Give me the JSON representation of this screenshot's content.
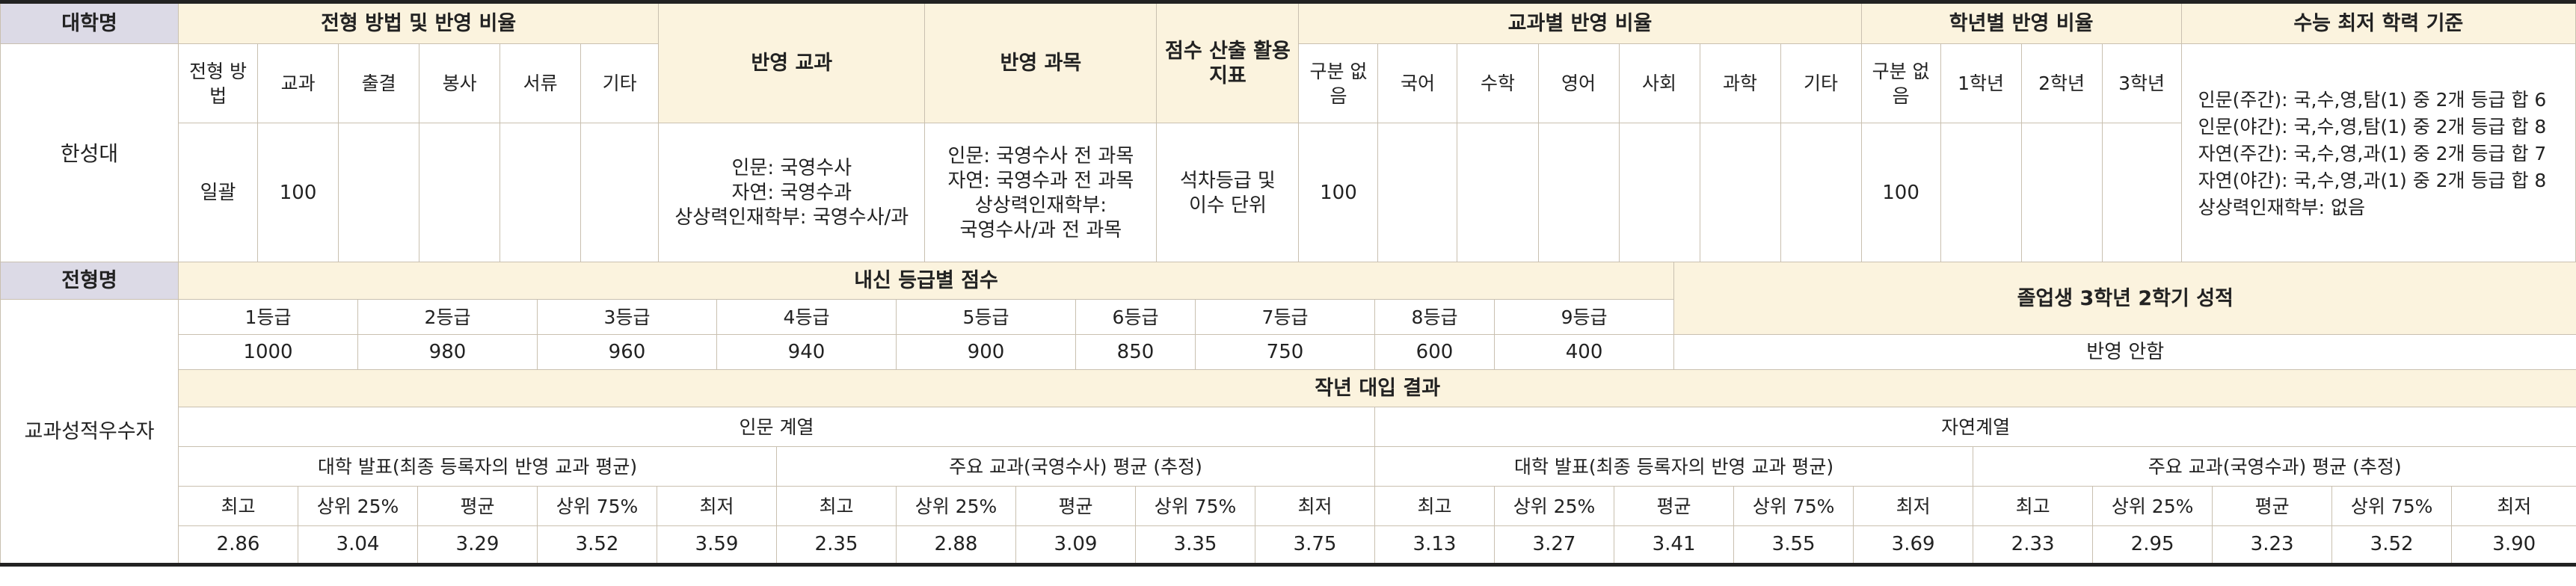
{
  "top": {
    "univ_label": "대학명",
    "method_group_label": "전형 방법 및 반영 비율",
    "subjects_label": "반영 교과",
    "courses_label": "반영 과목",
    "score_index_label": "점수 산출 활용 지표",
    "subject_ratio_label": "교과별 반영 비율",
    "grade_ratio_label": "학년별 반영 비율",
    "csat_label": "수능 최저 학력 기준",
    "method_cols": [
      "전형 방법",
      "교과",
      "출결",
      "봉사",
      "서류",
      "기타"
    ],
    "subject_cols": [
      "구분 없음",
      "국어",
      "수학",
      "영어",
      "사회",
      "과학",
      "기타"
    ],
    "grade_cols": [
      "구분 없음",
      "1학년",
      "2학년",
      "3학년"
    ],
    "univ_name": "한성대",
    "method_values": [
      "일괄",
      "100",
      "",
      "",
      "",
      ""
    ],
    "subjects_lines": [
      "인문: 국영수사",
      "자연: 국영수과",
      "상상력인재학부: 국영수사/과"
    ],
    "courses_lines": [
      "인문: 국영수사 전 과목",
      "자연: 국영수과 전 과목",
      "상상력인재학부:",
      "국영수사/과 전 과목"
    ],
    "score_index_lines": [
      "석차등급 및",
      "이수 단위"
    ],
    "subject_values": [
      "100",
      "",
      "",
      "",
      "",
      "",
      ""
    ],
    "grade_values": [
      "100",
      "",
      "",
      ""
    ],
    "csat_lines": [
      "인문(주간): 국,수,영,탐(1) 중 2개 등급 합 6",
      "인문(야간): 국,수,영,탐(1) 중 2개 등급 합 8",
      "자연(주간): 국,수,영,과(1) 중 2개 등급 합 7",
      "자연(야간): 국,수,영,과(1) 중 2개 등급 합 8",
      "상상력인재학부: 없음"
    ]
  },
  "bottom": {
    "type_label": "전형명",
    "type_name": "교과성적우수자",
    "grade_score_label": "내신 등급별 점수",
    "grades": [
      "1등급",
      "2등급",
      "3등급",
      "4등급",
      "5등급",
      "6등급",
      "7등급",
      "8등급",
      "9등급"
    ],
    "grade_scores": [
      "1000",
      "980",
      "960",
      "940",
      "900",
      "850",
      "750",
      "600",
      "400"
    ],
    "graduate_label": "졸업생 3학년 2학기 성적",
    "graduate_value": "반영 안함",
    "results_label": "작년 대입 결과",
    "tracks": [
      "인문 계열",
      "자연계열"
    ],
    "groups": [
      "대학 발표(최종 등록자의 반영 교과 평균)",
      "주요 교과(국영수사) 평균 (추정)",
      "대학 발표(최종 등록자의 반영 교과 평균)",
      "주요 교과(국영수과) 평균 (추정)"
    ],
    "stat_cols": [
      "최고",
      "상위 25%",
      "평균",
      "상위 75%",
      "최저"
    ],
    "results": [
      [
        "2.86",
        "3.04",
        "3.29",
        "3.52",
        "3.59"
      ],
      [
        "2.35",
        "2.88",
        "3.09",
        "3.35",
        "3.75"
      ],
      [
        "3.13",
        "3.27",
        "3.41",
        "3.55",
        "3.69"
      ],
      [
        "2.33",
        "2.95",
        "3.23",
        "3.52",
        "3.90"
      ]
    ]
  }
}
